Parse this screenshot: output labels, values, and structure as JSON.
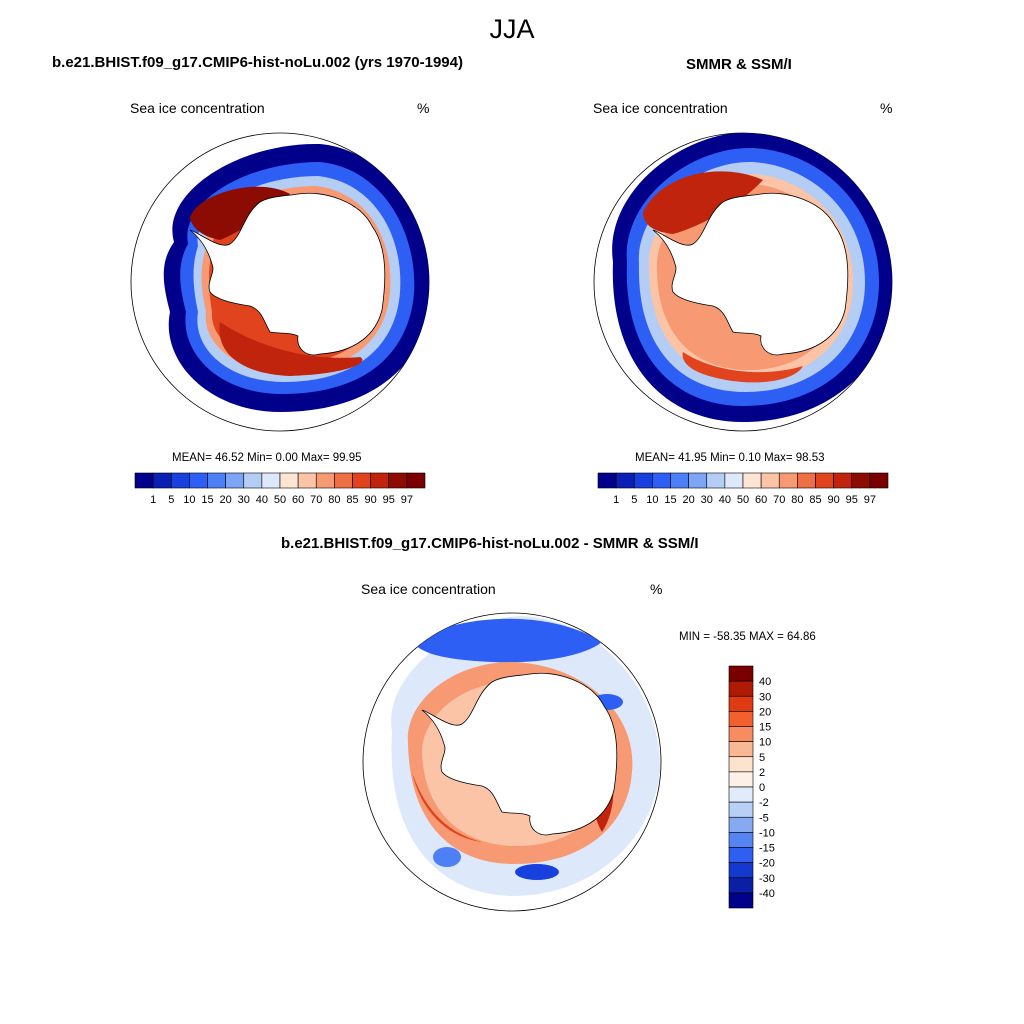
{
  "figure": {
    "title": "JJA"
  },
  "panels": [
    {
      "id": "model",
      "title": "b.e21.BHIST.f09_g17.CMIP6-hist-noLu.002 (yrs 1970-1994)",
      "variable": "Sea ice concentration",
      "units": "%",
      "stats_label": "MEAN=  46.52  Min=   0.00  Max=  99.95",
      "mean": 46.52,
      "min": 0.0,
      "max": 99.95
    },
    {
      "id": "obs",
      "title": "SMMR & SSM/I",
      "variable": "Sea ice concentration",
      "units": "%",
      "stats_label": "MEAN=  41.95  Min=   0.10  Max=  98.53",
      "mean": 41.95,
      "min": 0.1,
      "max": 98.53
    },
    {
      "id": "diff",
      "title": "b.e21.BHIST.f09_g17.CMIP6-hist-noLu.002 - SMMR & SSM/I",
      "variable": "Sea ice concentration",
      "units": "%",
      "stats_label": "MIN = -58.35 MAX =  64.86",
      "min": -58.35,
      "max": 64.86
    }
  ],
  "colorbars": {
    "concentration": {
      "labels": [
        "1",
        "5",
        "10",
        "15",
        "20",
        "30",
        "40",
        "50",
        "60",
        "70",
        "80",
        "85",
        "90",
        "95",
        "97"
      ],
      "colors": [
        "#00008b",
        "#0a1fb4",
        "#1740dc",
        "#2e5ff5",
        "#4d7ff7",
        "#7ea4f5",
        "#b4cdf5",
        "#dde9fb",
        "#fde4d3",
        "#fbc4a6",
        "#f79a74",
        "#ee6e45",
        "#e2431f",
        "#c0240c",
        "#8c0c04",
        "#7a0000"
      ]
    },
    "difference": {
      "labels": [
        "40",
        "30",
        "20",
        "15",
        "10",
        "5",
        "2",
        "0",
        "-2",
        "-5",
        "-10",
        "-15",
        "-20",
        "-30",
        "-40"
      ],
      "colors": [
        "#7a0000",
        "#b01a05",
        "#e03a12",
        "#f2602e",
        "#f78c60",
        "#fab794",
        "#fde2cd",
        "#fdf0e6",
        "#e0ecfb",
        "#b8d0f6",
        "#86a9f2",
        "#5784f2",
        "#2f5ff0",
        "#1538d0",
        "#0a1fa6",
        "#00008b"
      ]
    }
  }
}
